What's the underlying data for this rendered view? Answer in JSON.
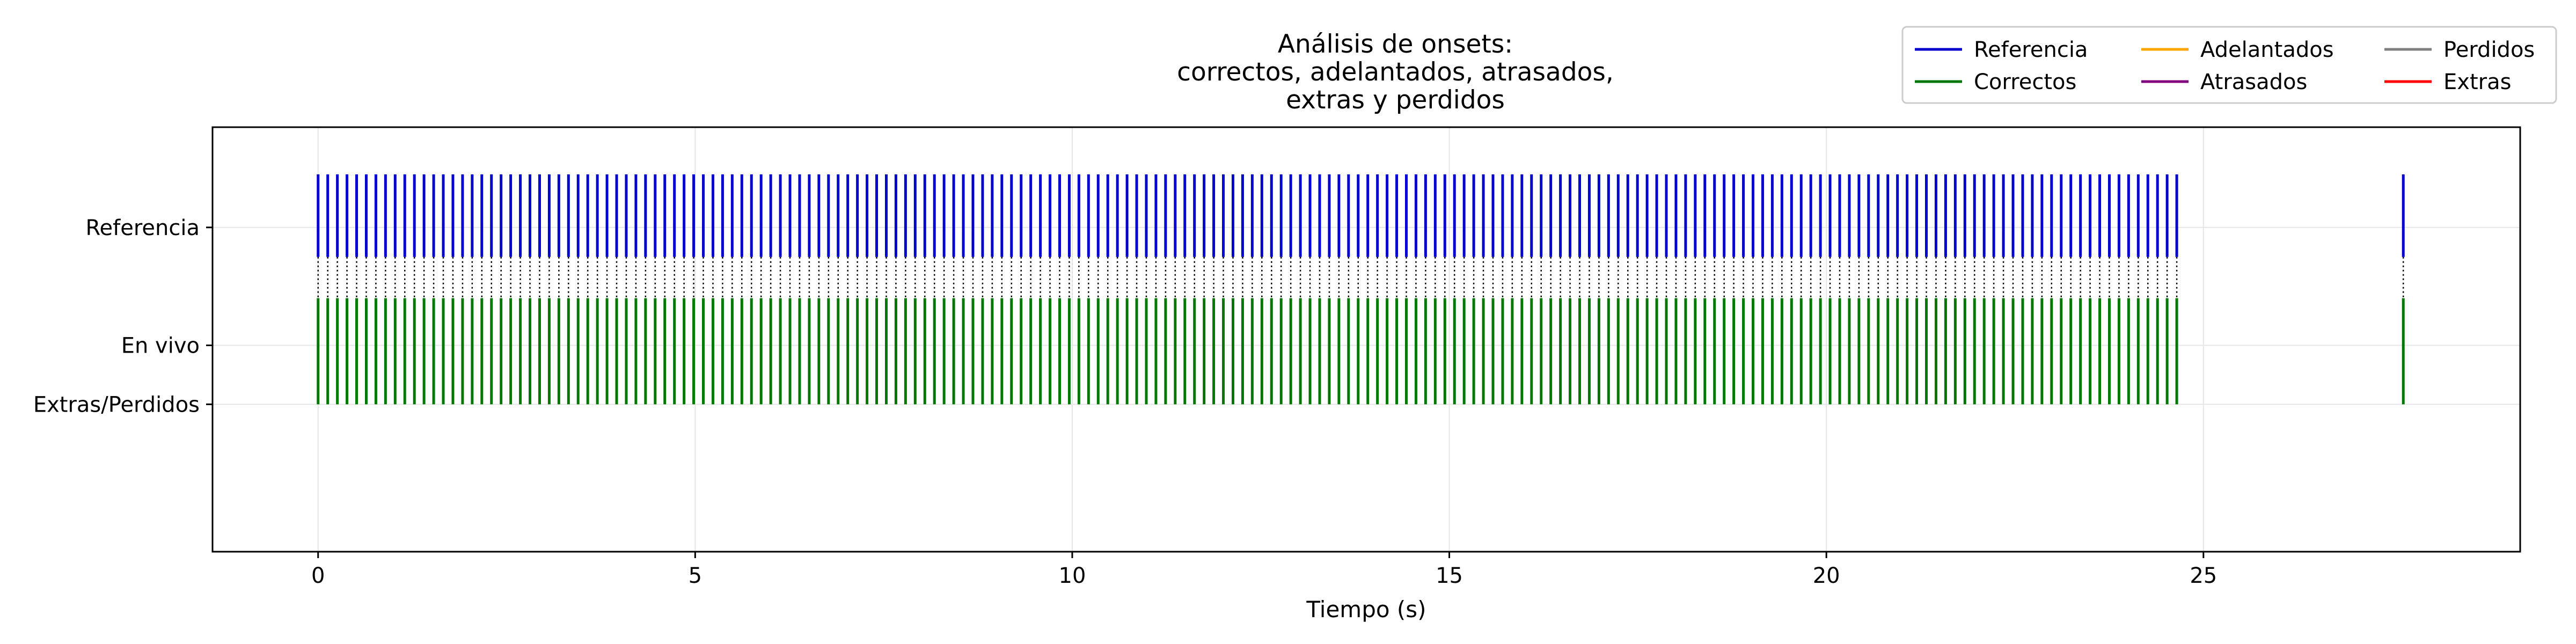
{
  "chart_data": {
    "type": "event",
    "title_lines": [
      "Análisis de onsets:",
      "correctos, adelantados, atrasados,",
      "extras y perdidos"
    ],
    "xlabel": "Tiempo (s)",
    "xlim": [
      -1.4,
      29.2
    ],
    "x_ticks": [
      0,
      5,
      10,
      15,
      20,
      25
    ],
    "x_tick_labels": [
      "0",
      "5",
      "10",
      "15",
      "20",
      "25"
    ],
    "y_ticks": [
      {
        "label": "Referencia",
        "value": 2
      },
      {
        "label": "En vivo",
        "value": 1
      },
      {
        "label": "Extras/Perdidos",
        "value": 0.5
      }
    ],
    "ylim": [
      -0.75,
      2.85
    ],
    "grid": true,
    "legend_position": "top-right",
    "legend": [
      {
        "label": "Referencia",
        "color": "#0000cc"
      },
      {
        "label": "Correctos",
        "color": "#007700"
      },
      {
        "label": "Adelantados",
        "color": "#ffa500"
      },
      {
        "label": "Atrasados",
        "color": "#800080"
      },
      {
        "label": "Perdidos",
        "color": "#808080"
      },
      {
        "label": "Extras",
        "color": "#ff0000"
      }
    ],
    "reference_onsets": {
      "start": 0.0,
      "step": 0.1277,
      "count": 194,
      "extra": [
        27.65
      ]
    },
    "late_onset": {
      "reference_time": 22.55,
      "live_time": 22.55
    },
    "displaced_live_onsets": [
      {
        "reference_time": 22.65,
        "live_time": 22.93
      },
      {
        "reference_time": 22.78,
        "live_time": 22.98
      },
      {
        "reference_time": 22.91,
        "live_time": 23.04
      },
      {
        "reference_time": 23.04,
        "live_time": 23.1
      },
      {
        "reference_time": 23.17,
        "live_time": 23.17
      }
    ]
  }
}
